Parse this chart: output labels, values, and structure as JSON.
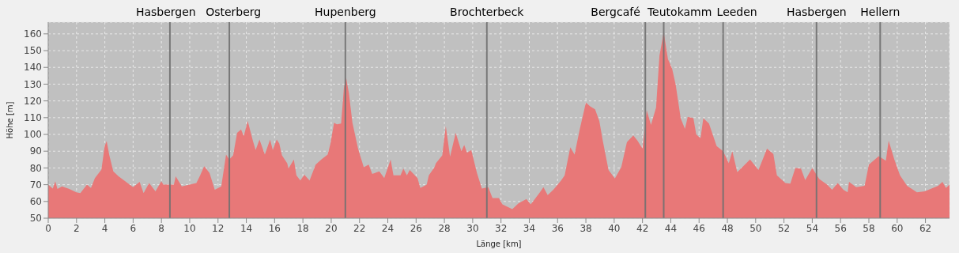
{
  "chart_data": {
    "type": "area",
    "xlabel": "Länge [km]",
    "ylabel": "Höhe [m]",
    "x": [
      0,
      0.32,
      0.5,
      0.65,
      0.97,
      1.49,
      1.99,
      2.27,
      2.74,
      3.02,
      3.3,
      3.76,
      3.99,
      4.13,
      4.32,
      4.6,
      4.97,
      5.44,
      6.0,
      6.46,
      6.74,
      7.13,
      7.58,
      7.99,
      8.14,
      8.88,
      9.01,
      9.44,
      10.0,
      10.47,
      10.74,
      11.02,
      11.4,
      11.77,
      12.23,
      12.57,
      12.79,
      13.07,
      13.35,
      13.63,
      13.82,
      14.1,
      14.47,
      14.66,
      14.93,
      15.31,
      15.68,
      15.87,
      16.15,
      16.33,
      16.52,
      16.89,
      16.98,
      17.36,
      17.54,
      17.82,
      18.1,
      18.47,
      18.9,
      19.3,
      19.75,
      19.95,
      20.2,
      20.4,
      20.7,
      20.9,
      21.05,
      21.25,
      21.5,
      21.9,
      22.3,
      22.65,
      22.9,
      23.4,
      23.75,
      24.2,
      24.4,
      24.9,
      25.1,
      25.35,
      25.55,
      26.1,
      26.3,
      26.75,
      26.9,
      27.3,
      27.4,
      27.85,
      28.1,
      28.4,
      28.8,
      29.2,
      29.4,
      29.6,
      29.9,
      30.3,
      30.65,
      31.1,
      31.4,
      31.85,
      32.1,
      32.8,
      33.25,
      33.8,
      34.1,
      34.75,
      35.0,
      35.3,
      35.7,
      36.25,
      36.5,
      36.9,
      37.2,
      37.55,
      38.0,
      38.3,
      38.65,
      38.95,
      39.2,
      39.6,
      40.05,
      40.5,
      40.9,
      41.35,
      41.65,
      42.0,
      42.3,
      42.6,
      42.96,
      43.2,
      43.5,
      43.8,
      44.1,
      44.35,
      44.7,
      45.0,
      45.2,
      45.6,
      45.8,
      46.1,
      46.3,
      46.7,
      47.24,
      47.7,
      48.1,
      48.35,
      48.7,
      49.6,
      50.2,
      50.8,
      51.25,
      51.5,
      52.1,
      52.45,
      52.8,
      53.2,
      53.5,
      54.0,
      54.5,
      55.05,
      55.4,
      55.8,
      56.2,
      56.5,
      56.6,
      57.1,
      57.7,
      58.0,
      58.7,
      59.2,
      59.4,
      59.8,
      60.2,
      60.7,
      61.4,
      61.95,
      62.9,
      63.2,
      63.45,
      63.7
    ],
    "series": [
      {
        "color": "#e87878",
        "values": [
          70,
          67.7,
          72,
          67.4,
          69,
          67.5,
          65.4,
          65,
          70,
          68,
          74,
          79,
          93,
          96,
          87.5,
          78,
          75,
          72,
          68.5,
          71.7,
          65,
          71,
          66,
          72,
          70,
          70,
          75,
          69,
          70,
          71,
          75.6,
          81,
          77,
          67,
          69,
          88,
          85,
          87.5,
          101,
          103,
          99,
          108,
          96,
          90.7,
          97,
          88,
          97,
          90.7,
          97,
          94.6,
          87.5,
          82.8,
          79.6,
          85,
          75.6,
          72.5,
          76,
          72.5,
          82,
          85,
          88,
          94.6,
          107,
          106,
          106.5,
          128,
          134,
          124.7,
          107,
          91.5,
          80.4,
          82,
          76.4,
          78,
          74,
          85,
          75.6,
          75.6,
          79.6,
          75.6,
          78.8,
          74,
          68,
          70,
          75.6,
          80.4,
          82.8,
          87.5,
          105,
          86.7,
          101,
          90,
          93.8,
          89,
          90.7,
          77,
          67.7,
          68.5,
          62,
          62,
          58.2,
          55.4,
          59,
          61.4,
          58.2,
          65.4,
          68.5,
          63.8,
          67,
          72.5,
          75.6,
          92.3,
          88,
          102.5,
          119,
          116.8,
          115,
          108,
          96,
          78.8,
          73.7,
          80.4,
          95.4,
          99.4,
          96.2,
          91.5,
          114.4,
          105.7,
          116,
          147,
          161,
          145,
          139,
          129.5,
          109.7,
          103.3,
          110.5,
          109.7,
          100,
          97.8,
          109.7,
          106.5,
          93,
          90,
          82.8,
          90,
          77.5,
          85,
          78.8,
          91.5,
          88.3,
          75.6,
          71,
          70.6,
          80,
          79.6,
          72.8,
          80,
          73.3,
          70,
          67,
          71,
          67,
          65.4,
          71.7,
          68.5,
          69.3,
          82,
          87,
          84.3,
          96.2,
          85,
          75.6,
          69.3,
          65.4,
          66,
          69.3,
          71.7,
          68,
          70
        ]
      }
    ],
    "xlim": [
      0,
      63.7
    ],
    "xticks": [
      0,
      2,
      4,
      6,
      8,
      10,
      12,
      14,
      16,
      18,
      20,
      22,
      24,
      26,
      28,
      30,
      32,
      34,
      36,
      38,
      40,
      42,
      44,
      46,
      48,
      50,
      52,
      54,
      56,
      58,
      60,
      62
    ],
    "ylim": [
      50,
      167
    ],
    "yticks": [
      50,
      60,
      70,
      80,
      90,
      100,
      110,
      120,
      130,
      140,
      150,
      160
    ],
    "grid": true,
    "ref_lines": [
      {
        "axis": "x",
        "value": 8.6,
        "label": "Hasbergen",
        "color": "#707070"
      },
      {
        "axis": "x",
        "value": 12.8,
        "label": "Osterberg",
        "color": "#707070"
      },
      {
        "axis": "x",
        "value": 21.0,
        "label": "Hupenberg",
        "color": "#707070"
      },
      {
        "axis": "x",
        "value": 31.0,
        "label": "Brochterbeck",
        "color": "#707070"
      },
      {
        "axis": "x",
        "value": 42.2,
        "label": "Bergcafé",
        "color": "#707070"
      },
      {
        "axis": "x",
        "value": 43.5,
        "label": "Teutokamm",
        "color": "#707070"
      },
      {
        "axis": "x",
        "value": 47.7,
        "label": "Leeden",
        "color": "#707070"
      },
      {
        "axis": "x",
        "value": 54.3,
        "label": "Hasbergen",
        "color": "#707070"
      },
      {
        "axis": "x",
        "value": 58.8,
        "label": "Hellern",
        "color": "#707070"
      }
    ]
  }
}
